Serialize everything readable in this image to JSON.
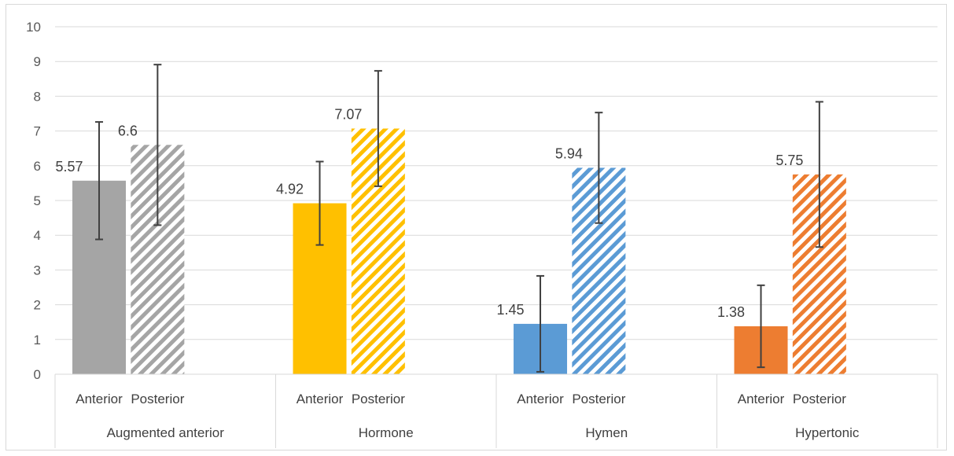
{
  "chart_data": {
    "type": "bar",
    "title": "",
    "xlabel": "",
    "ylabel": "",
    "ylim": [
      0,
      10
    ],
    "yticks": [
      0,
      1,
      2,
      3,
      4,
      5,
      6,
      7,
      8,
      9,
      10
    ],
    "grid": true,
    "legend": "none",
    "groups": [
      {
        "name": "Augmented anterior",
        "color": "#a5a5a5",
        "bars": [
          {
            "label": "Anterior",
            "value": 5.57,
            "display": "5.57",
            "error_low": 3.88,
            "error_high": 7.26,
            "pattern": "solid"
          },
          {
            "label": "Posterior",
            "value": 6.6,
            "display": "6.6",
            "error_low": 4.29,
            "error_high": 8.91,
            "pattern": "hatched"
          }
        ]
      },
      {
        "name": "Hormone",
        "color": "#ffc000",
        "bars": [
          {
            "label": "Anterior",
            "value": 4.92,
            "display": "4.92",
            "error_low": 3.72,
            "error_high": 6.12,
            "pattern": "solid"
          },
          {
            "label": "Posterior",
            "value": 7.07,
            "display": "7.07",
            "error_low": 5.41,
            "error_high": 8.73,
            "pattern": "hatched"
          }
        ]
      },
      {
        "name": "Hymen",
        "color": "#5b9bd5",
        "bars": [
          {
            "label": "Anterior",
            "value": 1.45,
            "display": "1.45",
            "error_low": 0.07,
            "error_high": 2.83,
            "pattern": "solid"
          },
          {
            "label": "Posterior",
            "value": 5.94,
            "display": "5.94",
            "error_low": 4.35,
            "error_high": 7.53,
            "pattern": "hatched"
          }
        ]
      },
      {
        "name": "Hypertonic",
        "color": "#ed7d31",
        "bars": [
          {
            "label": "Anterior",
            "value": 1.38,
            "display": "1.38",
            "error_low": 0.2,
            "error_high": 2.56,
            "pattern": "solid"
          },
          {
            "label": "Posterior",
            "value": 5.75,
            "display": "5.75",
            "error_low": 3.66,
            "error_high": 7.84,
            "pattern": "hatched"
          }
        ]
      }
    ]
  }
}
